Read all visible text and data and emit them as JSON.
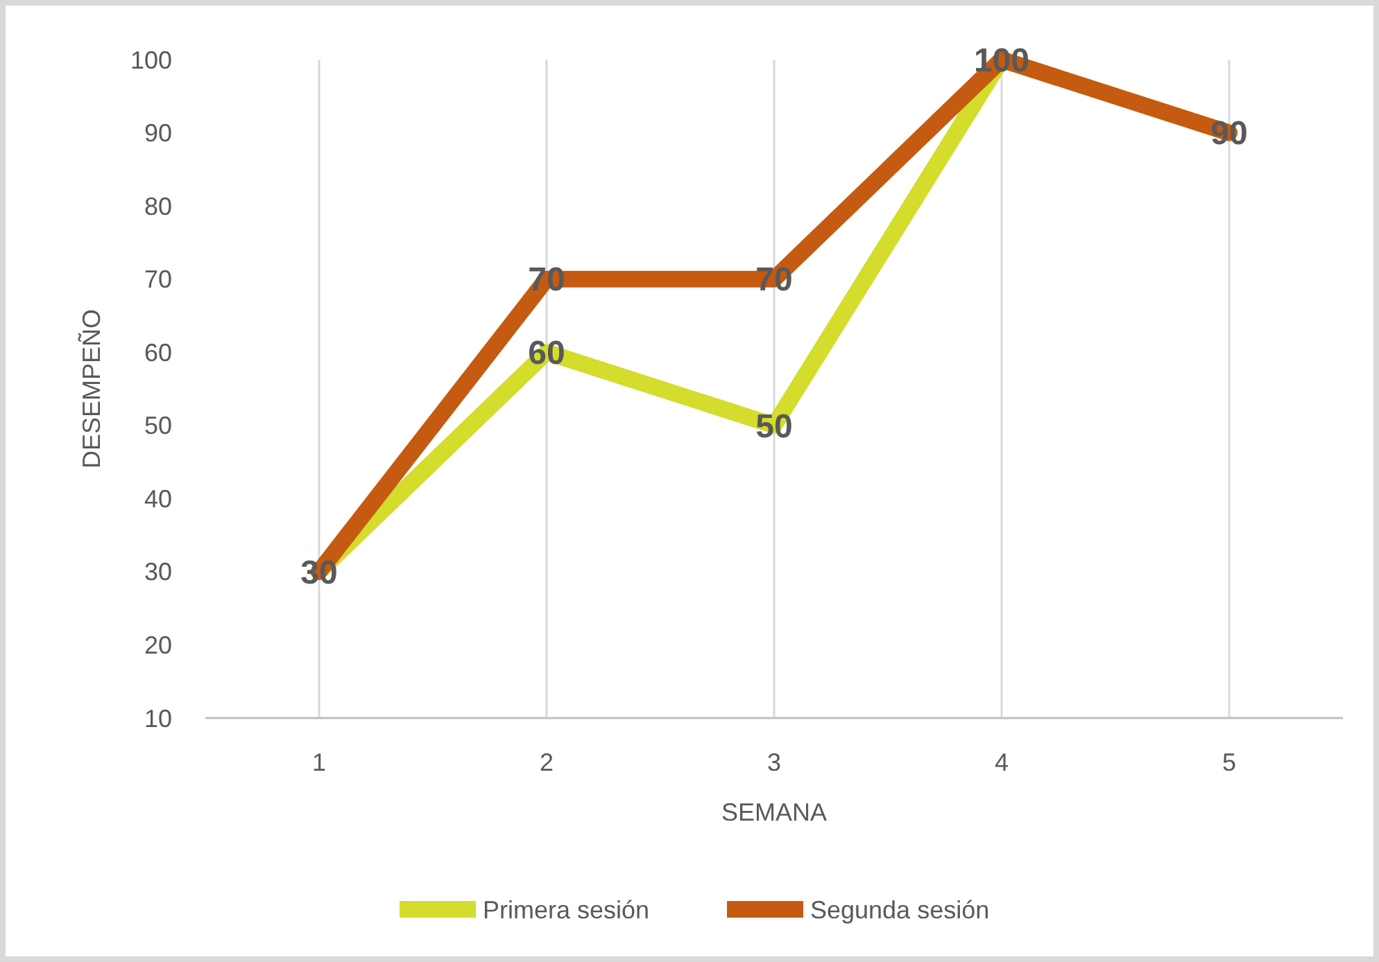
{
  "chart_data": {
    "type": "line",
    "xlabel": "SEMANA",
    "ylabel": "DESEMPEÑO",
    "categories": [
      "1",
      "2",
      "3",
      "4",
      "5"
    ],
    "series": [
      {
        "name": "Primera sesión",
        "color": "#d4dc2c",
        "values": [
          30,
          60,
          50,
          100,
          90
        ],
        "value_labels": [
          null,
          "60",
          "50",
          null,
          null
        ]
      },
      {
        "name": "Segunda sesión",
        "color": "#c55a11",
        "values": [
          30,
          70,
          70,
          100,
          90
        ],
        "value_labels": [
          "30",
          "70",
          "70",
          "100",
          "90"
        ]
      }
    ],
    "ylim": [
      10,
      100
    ],
    "yticks": [
      10,
      20,
      30,
      40,
      50,
      60,
      70,
      80,
      90,
      100
    ],
    "grid": "x",
    "legend": "bottom",
    "marker": "none",
    "line_style": "solid"
  }
}
